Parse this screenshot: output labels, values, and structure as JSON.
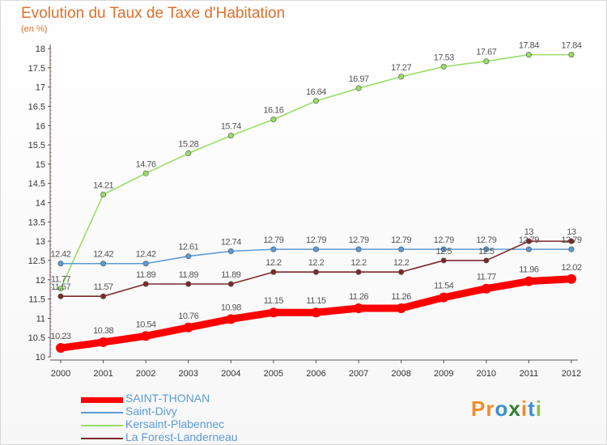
{
  "header": {
    "title": "Evolution du Taux de Taxe d'Habitation",
    "subtitle": "(en %)"
  },
  "logo": {
    "text": "Proxiti",
    "letters": [
      "P",
      "r",
      "o",
      "x",
      "i",
      "t",
      "i"
    ],
    "colors": [
      "#f28c28",
      "#f28c28",
      "#3c8fd0",
      "#2e7d32",
      "#f28c28",
      "#3c8fd0",
      "#8bc34a"
    ]
  },
  "chart_data": {
    "type": "line",
    "title": "Evolution du Taux de Taxe d'Habitation",
    "ylabel": "(en %)",
    "x": [
      2000,
      2001,
      2002,
      2003,
      2004,
      2005,
      2006,
      2007,
      2008,
      2009,
      2010,
      2011,
      2012
    ],
    "ylim": [
      10,
      18
    ],
    "yticks": [
      10,
      10.5,
      11,
      11.5,
      12,
      12.5,
      13,
      13.5,
      14,
      14.5,
      15,
      15.5,
      16,
      16.5,
      17,
      17.5,
      18
    ],
    "grid": false,
    "legend_position": "bottom-left",
    "series": [
      {
        "name": "SAINT-THONAN",
        "color": "#ff0000",
        "values": [
          10.23,
          10.38,
          10.54,
          10.76,
          10.98,
          11.15,
          11.15,
          11.26,
          11.26,
          11.54,
          11.77,
          11.96,
          12.02
        ]
      },
      {
        "name": "Saint-Divy",
        "color": "#5b9bd5",
        "values": [
          12.42,
          12.42,
          12.42,
          12.61,
          12.74,
          12.79,
          12.79,
          12.79,
          12.79,
          12.79,
          12.79,
          12.79,
          12.79
        ]
      },
      {
        "name": "Kersaint-Plabennec",
        "color": "#99dd66",
        "values": [
          11.77,
          14.21,
          14.76,
          15.28,
          15.74,
          16.16,
          16.64,
          16.97,
          17.27,
          17.53,
          17.67,
          17.84,
          17.84
        ]
      },
      {
        "name": "La Forest-Landerneau",
        "color": "#7a2a2a",
        "values": [
          11.57,
          11.57,
          11.89,
          11.89,
          11.89,
          12.2,
          12.2,
          12.2,
          12.2,
          12.5,
          12.5,
          13,
          13
        ]
      }
    ],
    "data_labels": {
      "SAINT-THONAN": [
        "10.23",
        "10.38",
        "10.54",
        "10.76",
        "10.98",
        "11.15",
        "11.15",
        "11.26",
        "11.26",
        "11.54",
        "11.77",
        "11.96",
        "12.02"
      ],
      "Saint-Divy": [
        "12.42",
        "12.42",
        "12.42",
        "12.61",
        "12.74",
        "12.79",
        "12.79",
        "12.79",
        "12.79",
        "12.79",
        "12.79",
        "12.79",
        "12.79"
      ],
      "Kersaint-Plabennec": [
        "11.77",
        "14.21",
        "14.76",
        "15.28",
        "15.74",
        "16.16",
        "16.64",
        "16.97",
        "17.27",
        "17.53",
        "17.67",
        "17.84",
        "17.84"
      ],
      "La Forest-Landerneau": [
        "11.57",
        "11.57",
        "11.89",
        "11.89",
        "11.89",
        "12.2",
        "12.2",
        "12.2",
        "12.2",
        "12.5",
        "12.5",
        "13",
        "13"
      ]
    }
  }
}
